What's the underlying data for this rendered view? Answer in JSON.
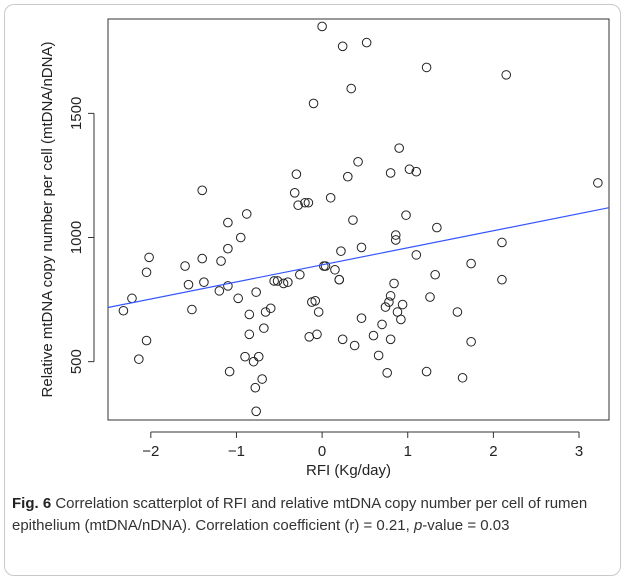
{
  "chart_data": {
    "type": "scatter",
    "title": "",
    "xlabel": "RFI (Kg/day)",
    "ylabel": "Relative mtDNA copy number per cell (mtDNA/nDNA)",
    "xlim": [
      -2.5,
      3.35
    ],
    "ylim": [
      265,
      1880
    ],
    "xticks": [
      -2,
      -1,
      0,
      1,
      2,
      3
    ],
    "yticks": [
      500,
      1000,
      1500
    ],
    "grid": false,
    "marker": "open-circle",
    "regression_line": {
      "x": [
        -2.5,
        3.35
      ],
      "y": [
        718,
        1120
      ],
      "color": "#3355ff"
    },
    "points": [
      {
        "x": -2.32,
        "y": 705
      },
      {
        "x": -2.22,
        "y": 755
      },
      {
        "x": -2.14,
        "y": 510
      },
      {
        "x": -2.05,
        "y": 585
      },
      {
        "x": -2.05,
        "y": 860
      },
      {
        "x": -2.02,
        "y": 920
      },
      {
        "x": -1.6,
        "y": 885
      },
      {
        "x": -1.56,
        "y": 810
      },
      {
        "x": -1.52,
        "y": 710
      },
      {
        "x": -1.4,
        "y": 1190
      },
      {
        "x": -1.4,
        "y": 915
      },
      {
        "x": -1.38,
        "y": 820
      },
      {
        "x": -1.2,
        "y": 785
      },
      {
        "x": -1.18,
        "y": 905
      },
      {
        "x": -1.1,
        "y": 1060
      },
      {
        "x": -1.1,
        "y": 955
      },
      {
        "x": -1.1,
        "y": 805
      },
      {
        "x": -1.08,
        "y": 460
      },
      {
        "x": -0.98,
        "y": 755
      },
      {
        "x": -0.95,
        "y": 1000
      },
      {
        "x": -0.9,
        "y": 520
      },
      {
        "x": -0.88,
        "y": 1095
      },
      {
        "x": -0.85,
        "y": 610
      },
      {
        "x": -0.85,
        "y": 690
      },
      {
        "x": -0.8,
        "y": 500
      },
      {
        "x": -0.78,
        "y": 395
      },
      {
        "x": -0.77,
        "y": 780
      },
      {
        "x": -0.77,
        "y": 300
      },
      {
        "x": -0.74,
        "y": 520
      },
      {
        "x": -0.7,
        "y": 430
      },
      {
        "x": -0.68,
        "y": 635
      },
      {
        "x": -0.66,
        "y": 700
      },
      {
        "x": -0.6,
        "y": 715
      },
      {
        "x": -0.56,
        "y": 825
      },
      {
        "x": -0.52,
        "y": 825
      },
      {
        "x": -0.45,
        "y": 815
      },
      {
        "x": -0.4,
        "y": 820
      },
      {
        "x": -0.32,
        "y": 1180
      },
      {
        "x": -0.3,
        "y": 1255
      },
      {
        "x": -0.28,
        "y": 1130
      },
      {
        "x": -0.26,
        "y": 850
      },
      {
        "x": -0.2,
        "y": 1140
      },
      {
        "x": -0.16,
        "y": 1140
      },
      {
        "x": -0.15,
        "y": 600
      },
      {
        "x": -0.12,
        "y": 740
      },
      {
        "x": -0.1,
        "y": 1540
      },
      {
        "x": -0.08,
        "y": 745
      },
      {
        "x": -0.06,
        "y": 610
      },
      {
        "x": -0.04,
        "y": 700
      },
      {
        "x": 0.0,
        "y": 1850
      },
      {
        "x": 0.02,
        "y": 885
      },
      {
        "x": 0.04,
        "y": 885
      },
      {
        "x": 0.1,
        "y": 1160
      },
      {
        "x": 0.15,
        "y": 870
      },
      {
        "x": 0.2,
        "y": 830
      },
      {
        "x": 0.2,
        "y": 830
      },
      {
        "x": 0.22,
        "y": 945
      },
      {
        "x": 0.24,
        "y": 1770
      },
      {
        "x": 0.24,
        "y": 590
      },
      {
        "x": 0.3,
        "y": 1245
      },
      {
        "x": 0.34,
        "y": 1600
      },
      {
        "x": 0.36,
        "y": 1070
      },
      {
        "x": 0.38,
        "y": 565
      },
      {
        "x": 0.42,
        "y": 1305
      },
      {
        "x": 0.46,
        "y": 960
      },
      {
        "x": 0.46,
        "y": 675
      },
      {
        "x": 0.52,
        "y": 1785
      },
      {
        "x": 0.6,
        "y": 605
      },
      {
        "x": 0.66,
        "y": 525
      },
      {
        "x": 0.7,
        "y": 650
      },
      {
        "x": 0.74,
        "y": 720
      },
      {
        "x": 0.76,
        "y": 455
      },
      {
        "x": 0.78,
        "y": 740
      },
      {
        "x": 0.8,
        "y": 765
      },
      {
        "x": 0.8,
        "y": 590
      },
      {
        "x": 0.8,
        "y": 1260
      },
      {
        "x": 0.84,
        "y": 815
      },
      {
        "x": 0.86,
        "y": 1010
      },
      {
        "x": 0.86,
        "y": 990
      },
      {
        "x": 0.88,
        "y": 700
      },
      {
        "x": 0.9,
        "y": 1360
      },
      {
        "x": 0.92,
        "y": 670
      },
      {
        "x": 0.94,
        "y": 730
      },
      {
        "x": 0.98,
        "y": 1090
      },
      {
        "x": 1.02,
        "y": 1275
      },
      {
        "x": 1.1,
        "y": 1265
      },
      {
        "x": 1.1,
        "y": 930
      },
      {
        "x": 1.22,
        "y": 1685
      },
      {
        "x": 1.22,
        "y": 460
      },
      {
        "x": 1.26,
        "y": 760
      },
      {
        "x": 1.32,
        "y": 850
      },
      {
        "x": 1.34,
        "y": 1040
      },
      {
        "x": 1.58,
        "y": 700
      },
      {
        "x": 1.64,
        "y": 435
      },
      {
        "x": 1.74,
        "y": 895
      },
      {
        "x": 1.74,
        "y": 580
      },
      {
        "x": 2.1,
        "y": 980
      },
      {
        "x": 2.1,
        "y": 830
      },
      {
        "x": 2.15,
        "y": 1655
      },
      {
        "x": 3.22,
        "y": 1220
      }
    ]
  },
  "caption": {
    "label": "Fig. 6",
    "text_before_p": " Correlation scatterplot of RFI and relative mtDNA copy number per cell of rumen epithelium (mtDNA/nDNA). Correlation coefficient (r) = 0.21, ",
    "p_symbol": "p",
    "text_after_p": "-value = 0.03"
  }
}
